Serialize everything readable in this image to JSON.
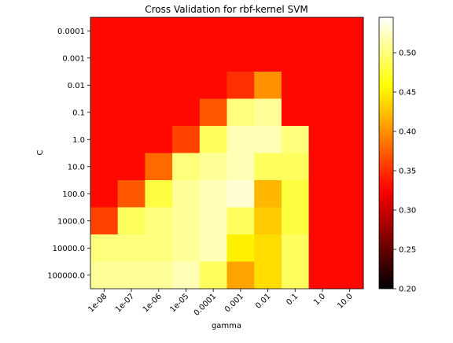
{
  "chart_data": {
    "type": "heatmap",
    "title": "Cross Validation for rbf-kernel SVM",
    "xlabel": "gamma",
    "ylabel": "C",
    "x_categories": [
      "1e-08",
      "1e-07",
      "1e-06",
      "1e-05",
      "0.0001",
      "0.001",
      "0.01",
      "0.1",
      "1.0",
      "10.0"
    ],
    "y_categories": [
      "0.0001",
      "0.001",
      "0.01",
      "0.1",
      "1.0",
      "10.0",
      "100.0",
      "1000.0",
      "10000.0",
      "100000.0"
    ],
    "values": [
      [
        0.33,
        0.33,
        0.33,
        0.33,
        0.33,
        0.33,
        0.33,
        0.33,
        0.33,
        0.33
      ],
      [
        0.33,
        0.33,
        0.33,
        0.33,
        0.33,
        0.33,
        0.33,
        0.33,
        0.33,
        0.33
      ],
      [
        0.33,
        0.33,
        0.33,
        0.33,
        0.33,
        0.35,
        0.4,
        0.33,
        0.33,
        0.33
      ],
      [
        0.33,
        0.33,
        0.33,
        0.33,
        0.37,
        0.5,
        0.51,
        0.33,
        0.33,
        0.33
      ],
      [
        0.33,
        0.33,
        0.33,
        0.36,
        0.49,
        0.52,
        0.52,
        0.5,
        0.33,
        0.33
      ],
      [
        0.33,
        0.33,
        0.38,
        0.5,
        0.51,
        0.52,
        0.49,
        0.49,
        0.33,
        0.33
      ],
      [
        0.33,
        0.37,
        0.48,
        0.51,
        0.52,
        0.53,
        0.42,
        0.48,
        0.33,
        0.33
      ],
      [
        0.36,
        0.49,
        0.5,
        0.51,
        0.52,
        0.49,
        0.43,
        0.48,
        0.33,
        0.33
      ],
      [
        0.5,
        0.5,
        0.5,
        0.51,
        0.52,
        0.45,
        0.44,
        0.49,
        0.33,
        0.33
      ],
      [
        0.51,
        0.51,
        0.51,
        0.52,
        0.49,
        0.41,
        0.44,
        0.49,
        0.33,
        0.33
      ]
    ],
    "colormap": "hot",
    "vmin": 0.2,
    "vmax": 0.545,
    "colorbar_ticks": [
      "0.20",
      "0.25",
      "0.30",
      "0.35",
      "0.40",
      "0.45",
      "0.50"
    ],
    "colorbar_tick_values": [
      0.2,
      0.25,
      0.3,
      0.35,
      0.4,
      0.45,
      0.5
    ],
    "x_tick_rotation": 45,
    "grid": false
  }
}
